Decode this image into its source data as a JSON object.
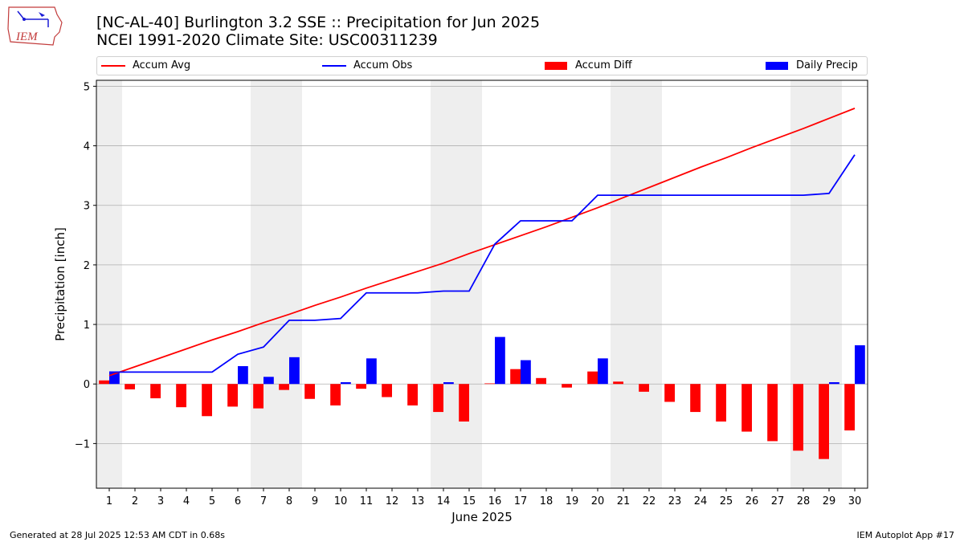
{
  "logo": {
    "text": "IEM",
    "icon": "iowa-state-logo-icon"
  },
  "title": {
    "line1": "[NC-AL-40] Burlington 3.2 SSE :: Precipitation for Jun 2025",
    "line2": "NCEI 1991-2020 Climate Site: USC00311239"
  },
  "legend": [
    {
      "label": "Accum Avg",
      "kind": "line",
      "color": "#ff0000"
    },
    {
      "label": "Accum Obs",
      "kind": "line",
      "color": "#0000ff"
    },
    {
      "label": "Accum Diff",
      "kind": "bar",
      "color": "#ff0000"
    },
    {
      "label": "Daily Precip",
      "kind": "bar",
      "color": "#0000ff"
    }
  ],
  "footer": {
    "left": "Generated at 28 Jul 2025 12:53 AM CDT in 0.68s",
    "right": "IEM Autoplot App #17"
  },
  "chart_data": {
    "type": "bar",
    "xlabel": "June 2025",
    "ylabel": "Precipitation [inch]",
    "xlim": [
      0.5,
      30.5
    ],
    "ylim": [
      -1.75,
      5.1
    ],
    "yticks": [
      -1,
      0,
      1,
      2,
      3,
      4,
      5
    ],
    "ytick_labels": [
      "−1",
      "0",
      "1",
      "2",
      "3",
      "4",
      "5"
    ],
    "x": [
      1,
      2,
      3,
      4,
      5,
      6,
      7,
      8,
      9,
      10,
      11,
      12,
      13,
      14,
      15,
      16,
      17,
      18,
      19,
      20,
      21,
      22,
      23,
      24,
      25,
      26,
      27,
      28,
      29,
      30
    ],
    "weekend_days": [
      1,
      7,
      8,
      14,
      15,
      21,
      22,
      28,
      29
    ],
    "grid": "horizontal",
    "series": [
      {
        "name": "Accum Avg",
        "kind": "line",
        "color": "#ff0000",
        "values": [
          0.14,
          0.29,
          0.44,
          0.59,
          0.74,
          0.88,
          1.03,
          1.17,
          1.32,
          1.46,
          1.61,
          1.75,
          1.89,
          2.03,
          2.19,
          2.34,
          2.49,
          2.64,
          2.8,
          2.96,
          3.13,
          3.3,
          3.47,
          3.64,
          3.8,
          3.97,
          4.13,
          4.29,
          4.46,
          4.63
        ]
      },
      {
        "name": "Accum Obs",
        "kind": "line",
        "color": "#0000ff",
        "values": [
          0.2,
          0.2,
          0.2,
          0.2,
          0.2,
          0.5,
          0.62,
          1.07,
          1.07,
          1.1,
          1.53,
          1.53,
          1.53,
          1.56,
          1.56,
          2.35,
          2.74,
          2.74,
          2.74,
          3.17,
          3.17,
          3.17,
          3.17,
          3.17,
          3.17,
          3.17,
          3.17,
          3.17,
          3.2,
          3.85
        ]
      },
      {
        "name": "Accum Diff",
        "kind": "bar",
        "color": "#ff0000",
        "values": [
          0.06,
          -0.09,
          -0.24,
          -0.39,
          -0.54,
          -0.38,
          -0.41,
          -0.1,
          -0.25,
          -0.36,
          -0.08,
          -0.22,
          -0.36,
          -0.47,
          -0.63,
          0.01,
          0.25,
          0.1,
          -0.06,
          0.21,
          0.04,
          -0.13,
          -0.3,
          -0.47,
          -0.63,
          -0.8,
          -0.96,
          -1.12,
          -1.26,
          -0.78
        ]
      },
      {
        "name": "Daily Precip",
        "kind": "bar",
        "color": "#0000ff",
        "values": [
          0.2,
          0.0,
          0.0,
          0.0,
          0.0,
          0.3,
          0.12,
          0.45,
          0.0,
          0.03,
          0.43,
          0.0,
          0.0,
          0.03,
          0.0,
          0.79,
          0.4,
          0.0,
          0.0,
          0.43,
          0.0,
          0.0,
          0.0,
          0.0,
          0.0,
          0.0,
          0.0,
          0.0,
          0.03,
          0.65
        ]
      }
    ]
  }
}
